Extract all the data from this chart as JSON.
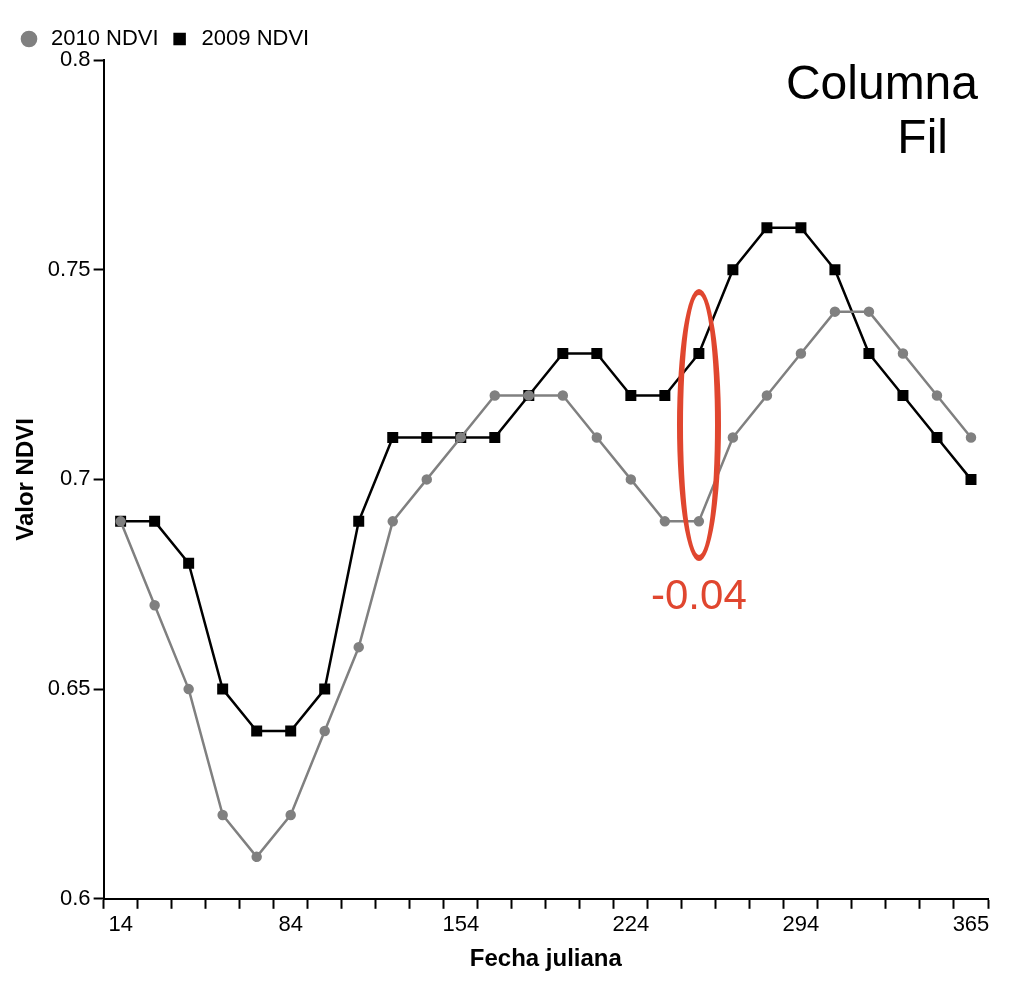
{
  "chart_data": {
    "type": "line",
    "xlabel": "Fecha juliana",
    "ylabel": "Valor NDVI",
    "categories": [
      "14",
      null,
      null,
      null,
      null,
      "84",
      null,
      null,
      null,
      null,
      "154",
      null,
      null,
      null,
      null,
      "224",
      null,
      null,
      null,
      null,
      "294",
      null,
      null,
      null,
      null,
      "365"
    ],
    "series": [
      {
        "name": "2009 NDVI",
        "color": "#000000",
        "marker": "square",
        "values": [
          0.69,
          0.69,
          0.68,
          0.65,
          0.64,
          0.64,
          0.65,
          0.69,
          0.71,
          0.71,
          0.71,
          0.71,
          0.72,
          0.73,
          0.73,
          0.72,
          0.72,
          0.73,
          0.75,
          0.76,
          0.76,
          0.75,
          0.73,
          0.72,
          0.71,
          0.7
        ]
      },
      {
        "name": "2010 NDVI",
        "color": "#808080",
        "marker": "circle",
        "values": [
          0.69,
          0.67,
          0.65,
          0.62,
          0.61,
          0.62,
          0.64,
          0.66,
          0.69,
          0.7,
          0.71,
          0.72,
          0.72,
          0.72,
          0.71,
          0.7,
          0.69,
          0.69,
          0.71,
          0.72,
          0.73,
          0.74,
          0.74,
          0.73,
          0.72,
          0.71
        ]
      }
    ],
    "ylim": [
      0.6,
      0.8
    ],
    "yticks": [
      0.6,
      0.65,
      0.7,
      0.75,
      0.8
    ],
    "grid": false,
    "legend": "top left",
    "line_style": "solid",
    "annotations": [
      "-0.04",
      "Columna",
      "Fil"
    ]
  }
}
